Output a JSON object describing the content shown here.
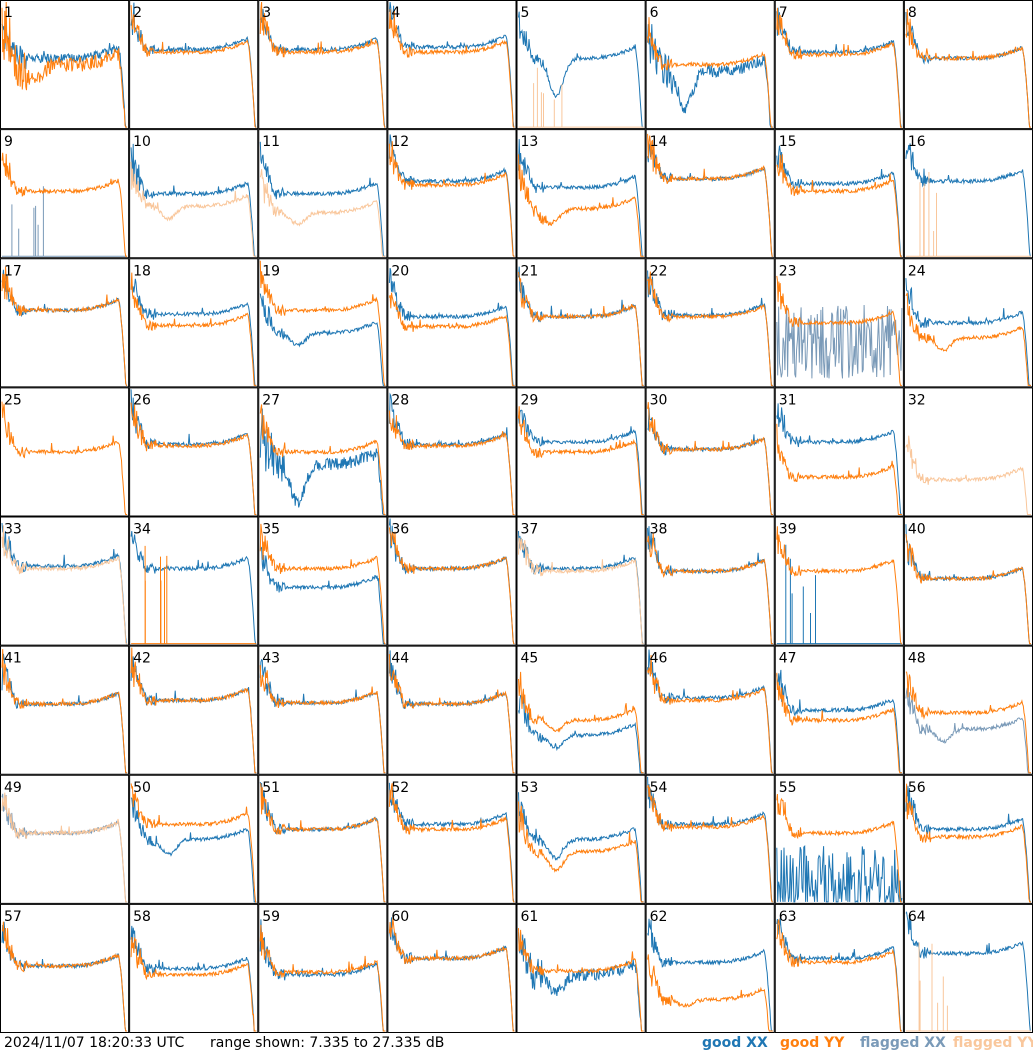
{
  "footer": {
    "timestamp": "2024/11/07 18:20:33 UTC",
    "range": "range shown: 7.335 to 27.335 dB"
  },
  "legend": [
    {
      "key": "good_xx",
      "label": "good XX",
      "color": "#1f77b4"
    },
    {
      "key": "good_yy",
      "label": "good YY",
      "color": "#ff7f0e"
    },
    {
      "key": "flagged_xx",
      "label": "flagged XX",
      "color": "#7a9ab8"
    },
    {
      "key": "flagged_yy",
      "label": "flagged YY",
      "color": "#f9c79c"
    }
  ],
  "chart_data": {
    "type": "line",
    "grid": {
      "rows": 8,
      "cols": 8
    },
    "ylim": [
      7.335,
      27.335
    ],
    "y_unit": "dB",
    "panels": [
      {
        "label": "1",
        "xx": {
          "s": "flat",
          "lvl": 0.55,
          "noise": 0.07
        },
        "yy": {
          "s": "deep",
          "lvl": 0.5,
          "noise": 0.12
        }
      },
      {
        "label": "2",
        "xx": {
          "s": "flat",
          "lvl": 0.62
        },
        "yy": {
          "s": "flat",
          "lvl": 0.6
        }
      },
      {
        "label": "3",
        "xx": {
          "s": "flat",
          "lvl": 0.62
        },
        "yy": {
          "s": "flat",
          "lvl": 0.6
        }
      },
      {
        "label": "4",
        "xx": {
          "s": "flat",
          "lvl": 0.64
        },
        "yy": {
          "s": "flat",
          "lvl": 0.6
        }
      },
      {
        "label": "5",
        "xx": {
          "s": "dip",
          "lvl": 0.55,
          "depth": 0.3
        },
        "yy": {
          "s": "spikes",
          "flag": true
        }
      },
      {
        "label": "6",
        "xx": {
          "s": "dip",
          "lvl": 0.45,
          "depth": 0.3,
          "noise": 0.1
        },
        "yy": {
          "s": "flat",
          "lvl": 0.5
        }
      },
      {
        "label": "7",
        "xx": {
          "s": "flat",
          "lvl": 0.6
        },
        "yy": {
          "s": "flat",
          "lvl": 0.58
        }
      },
      {
        "label": "8",
        "xx": {
          "s": "flat",
          "lvl": 0.55
        },
        "yy": {
          "s": "flat",
          "lvl": 0.55
        }
      },
      {
        "label": "9",
        "xx": {
          "s": "spikes",
          "flag": true
        },
        "yy": {
          "s": "flat",
          "lvl": 0.52
        }
      },
      {
        "label": "10",
        "xx": {
          "s": "flat",
          "lvl": 0.5
        },
        "yy": {
          "s": "dip",
          "lvl": 0.4,
          "depth": 0.1,
          "flag": true
        }
      },
      {
        "label": "11",
        "xx": {
          "s": "flat",
          "lvl": 0.5
        },
        "yy": {
          "s": "dip",
          "lvl": 0.35,
          "depth": 0.1,
          "flag": true
        }
      },
      {
        "label": "12",
        "xx": {
          "s": "flat",
          "lvl": 0.6
        },
        "yy": {
          "s": "flat",
          "lvl": 0.57
        }
      },
      {
        "label": "13",
        "xx": {
          "s": "flat",
          "lvl": 0.55
        },
        "yy": {
          "s": "deep",
          "lvl": 0.38
        }
      },
      {
        "label": "14",
        "xx": {
          "s": "flat",
          "lvl": 0.62
        },
        "yy": {
          "s": "flat",
          "lvl": 0.62
        }
      },
      {
        "label": "15",
        "xx": {
          "s": "flat",
          "lvl": 0.58
        },
        "yy": {
          "s": "flat",
          "lvl": 0.52
        }
      },
      {
        "label": "16",
        "xx": {
          "s": "flat",
          "lvl": 0.6
        },
        "yy": {
          "s": "spikes",
          "flag": true
        }
      },
      {
        "label": "17",
        "xx": {
          "s": "flat",
          "lvl": 0.6
        },
        "yy": {
          "s": "flat",
          "lvl": 0.6
        }
      },
      {
        "label": "18",
        "xx": {
          "s": "flat",
          "lvl": 0.57
        },
        "yy": {
          "s": "flat",
          "lvl": 0.48
        }
      },
      {
        "label": "19",
        "xx": {
          "s": "dip",
          "lvl": 0.42,
          "depth": 0.1
        },
        "yy": {
          "s": "flat",
          "lvl": 0.6
        }
      },
      {
        "label": "20",
        "xx": {
          "s": "flat",
          "lvl": 0.55
        },
        "yy": {
          "s": "flat",
          "lvl": 0.47
        }
      },
      {
        "label": "21",
        "xx": {
          "s": "flat",
          "lvl": 0.55
        },
        "yy": {
          "s": "flat",
          "lvl": 0.55
        }
      },
      {
        "label": "22",
        "xx": {
          "s": "flat",
          "lvl": 0.56
        },
        "yy": {
          "s": "flat",
          "lvl": 0.55
        }
      },
      {
        "label": "23",
        "xx": {
          "s": "chaos",
          "lvl": 0.35,
          "flag": true
        },
        "yy": {
          "s": "flat",
          "lvl": 0.5
        }
      },
      {
        "label": "24",
        "xx": {
          "s": "flat",
          "lvl": 0.5
        },
        "yy": {
          "s": "dip",
          "lvl": 0.38,
          "depth": 0.1
        }
      },
      {
        "label": "25",
        "xx": {
          "s": "none"
        },
        "yy": {
          "s": "flat",
          "lvl": 0.5
        }
      },
      {
        "label": "26",
        "xx": {
          "s": "flat",
          "lvl": 0.56
        },
        "yy": {
          "s": "flat",
          "lvl": 0.55
        }
      },
      {
        "label": "27",
        "xx": {
          "s": "dip",
          "lvl": 0.4,
          "depth": 0.3,
          "noise": 0.1
        },
        "yy": {
          "s": "flat",
          "lvl": 0.5
        }
      },
      {
        "label": "28",
        "xx": {
          "s": "flat",
          "lvl": 0.56
        },
        "yy": {
          "s": "flat",
          "lvl": 0.55
        }
      },
      {
        "label": "29",
        "xx": {
          "s": "flat",
          "lvl": 0.58
        },
        "yy": {
          "s": "flat",
          "lvl": 0.5
        }
      },
      {
        "label": "30",
        "xx": {
          "s": "flat",
          "lvl": 0.52
        },
        "yy": {
          "s": "flat",
          "lvl": 0.52
        }
      },
      {
        "label": "31",
        "xx": {
          "s": "flat",
          "lvl": 0.58
        },
        "yy": {
          "s": "flat",
          "lvl": 0.3
        }
      },
      {
        "label": "32",
        "xx": {
          "s": "none"
        },
        "yy": {
          "s": "flat",
          "lvl": 0.28,
          "flag": true
        }
      },
      {
        "label": "33",
        "xx": {
          "s": "flat",
          "lvl": 0.62
        },
        "yy": {
          "s": "flat",
          "lvl": 0.6,
          "flag": true
        }
      },
      {
        "label": "34",
        "xx": {
          "s": "flat",
          "lvl": 0.6
        },
        "yy": {
          "s": "spikes"
        }
      },
      {
        "label": "35",
        "xx": {
          "s": "flat",
          "lvl": 0.45
        },
        "yy": {
          "s": "flat",
          "lvl": 0.6
        }
      },
      {
        "label": "36",
        "xx": {
          "s": "flat",
          "lvl": 0.6
        },
        "yy": {
          "s": "flat",
          "lvl": 0.6
        }
      },
      {
        "label": "37",
        "xx": {
          "s": "flat",
          "lvl": 0.6
        },
        "yy": {
          "s": "flat",
          "lvl": 0.58,
          "flag": true
        }
      },
      {
        "label": "38",
        "xx": {
          "s": "flat",
          "lvl": 0.58
        },
        "yy": {
          "s": "flat",
          "lvl": 0.58
        }
      },
      {
        "label": "39",
        "xx": {
          "s": "spikes"
        },
        "yy": {
          "s": "flat",
          "lvl": 0.58
        }
      },
      {
        "label": "40",
        "xx": {
          "s": "flat",
          "lvl": 0.52
        },
        "yy": {
          "s": "flat",
          "lvl": 0.52
        }
      },
      {
        "label": "41",
        "xx": {
          "s": "flat",
          "lvl": 0.55
        },
        "yy": {
          "s": "flat",
          "lvl": 0.55
        }
      },
      {
        "label": "42",
        "xx": {
          "s": "flat",
          "lvl": 0.58
        },
        "yy": {
          "s": "flat",
          "lvl": 0.58
        }
      },
      {
        "label": "43",
        "xx": {
          "s": "flat",
          "lvl": 0.56
        },
        "yy": {
          "s": "flat",
          "lvl": 0.56
        }
      },
      {
        "label": "44",
        "xx": {
          "s": "flat",
          "lvl": 0.55
        },
        "yy": {
          "s": "flat",
          "lvl": 0.55
        }
      },
      {
        "label": "45",
        "xx": {
          "s": "dip",
          "lvl": 0.3,
          "depth": 0.1
        },
        "yy": {
          "s": "dip",
          "lvl": 0.42,
          "depth": 0.08
        }
      },
      {
        "label": "46",
        "xx": {
          "s": "flat",
          "lvl": 0.6
        },
        "yy": {
          "s": "flat",
          "lvl": 0.58
        }
      },
      {
        "label": "47",
        "xx": {
          "s": "flat",
          "lvl": 0.5
        },
        "yy": {
          "s": "flat",
          "lvl": 0.42
        }
      },
      {
        "label": "48",
        "xx": {
          "s": "dip",
          "lvl": 0.35,
          "depth": 0.1,
          "flag": true
        },
        "yy": {
          "s": "flat",
          "lvl": 0.48
        }
      },
      {
        "label": "49",
        "xx": {
          "s": "flat",
          "lvl": 0.55,
          "flag": true
        },
        "yy": {
          "s": "flat",
          "lvl": 0.55,
          "flag": true
        }
      },
      {
        "label": "50",
        "xx": {
          "s": "dip",
          "lvl": 0.5,
          "depth": 0.12
        },
        "yy": {
          "s": "flat",
          "lvl": 0.62
        }
      },
      {
        "label": "51",
        "xx": {
          "s": "flat",
          "lvl": 0.58
        },
        "yy": {
          "s": "flat",
          "lvl": 0.58
        }
      },
      {
        "label": "52",
        "xx": {
          "s": "flat",
          "lvl": 0.62
        },
        "yy": {
          "s": "flat",
          "lvl": 0.58
        }
      },
      {
        "label": "53",
        "xx": {
          "s": "dip",
          "lvl": 0.5,
          "depth": 0.15
        },
        "yy": {
          "s": "dip",
          "lvl": 0.4,
          "depth": 0.15
        }
      },
      {
        "label": "54",
        "xx": {
          "s": "flat",
          "lvl": 0.62
        },
        "yy": {
          "s": "flat",
          "lvl": 0.6
        }
      },
      {
        "label": "55",
        "xx": {
          "s": "chaos",
          "lvl": 0.15
        },
        "yy": {
          "s": "flat",
          "lvl": 0.55
        }
      },
      {
        "label": "56",
        "xx": {
          "s": "flat",
          "lvl": 0.58
        },
        "yy": {
          "s": "flat",
          "lvl": 0.52
        }
      },
      {
        "label": "57",
        "xx": {
          "s": "flat",
          "lvl": 0.52
        },
        "yy": {
          "s": "flat",
          "lvl": 0.52
        }
      },
      {
        "label": "58",
        "xx": {
          "s": "flat",
          "lvl": 0.5
        },
        "yy": {
          "s": "flat",
          "lvl": 0.45
        }
      },
      {
        "label": "59",
        "xx": {
          "s": "flat",
          "lvl": 0.45
        },
        "yy": {
          "s": "flat",
          "lvl": 0.47
        }
      },
      {
        "label": "60",
        "xx": {
          "s": "flat",
          "lvl": 0.58
        },
        "yy": {
          "s": "flat",
          "lvl": 0.58
        }
      },
      {
        "label": "61",
        "xx": {
          "s": "dip",
          "lvl": 0.45,
          "depth": 0.15,
          "noise": 0.1
        },
        "yy": {
          "s": "flat",
          "lvl": 0.48
        }
      },
      {
        "label": "62",
        "xx": {
          "s": "flat",
          "lvl": 0.55
        },
        "yy": {
          "s": "dip",
          "lvl": 0.25,
          "depth": 0.05
        }
      },
      {
        "label": "63",
        "xx": {
          "s": "flat",
          "lvl": 0.58
        },
        "yy": {
          "s": "flat",
          "lvl": 0.55
        }
      },
      {
        "label": "64",
        "xx": {
          "s": "flat",
          "lvl": 0.62
        },
        "yy": {
          "s": "spikes",
          "flag": true
        }
      }
    ]
  }
}
